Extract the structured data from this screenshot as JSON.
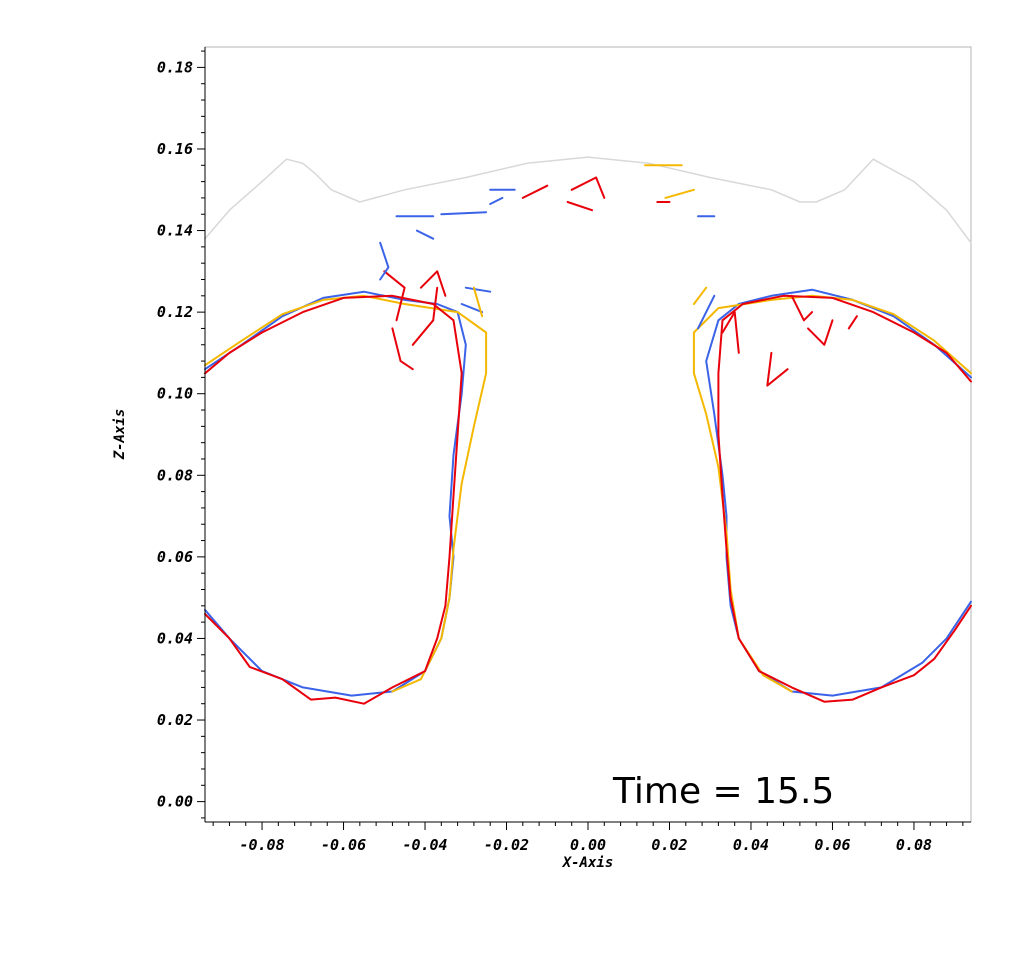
{
  "chart_data": {
    "type": "line",
    "xlabel": "X-Axis",
    "ylabel": "Z-Axis",
    "xlim": [
      -0.094,
      0.094
    ],
    "ylim": [
      -0.005,
      0.185
    ],
    "x_ticks": [
      -0.08,
      -0.06,
      -0.04,
      -0.02,
      0.0,
      0.02,
      0.04,
      0.06,
      0.08
    ],
    "x_tick_labels": [
      "-0.08",
      "-0.06",
      "-0.04",
      "-0.02",
      "0.00",
      "0.02",
      "0.04",
      "0.06",
      "0.08"
    ],
    "y_ticks": [
      0.0,
      0.02,
      0.04,
      0.06,
      0.08,
      0.1,
      0.12,
      0.14,
      0.16,
      0.18
    ],
    "y_tick_labels": [
      "0.00",
      "0.02",
      "0.04",
      "0.06",
      "0.08",
      "0.10",
      "0.12",
      "0.14",
      "0.16",
      "0.18"
    ],
    "annotation": "Time = 15.5",
    "grid": false,
    "colors": {
      "red": "#e8000b",
      "blue": "#3b63e8",
      "yellow": "#f5b800",
      "gray": "#d8d8d8"
    },
    "series": [
      {
        "color": "gray",
        "points": [
          [
            -0.094,
            0.138
          ],
          [
            -0.088,
            0.145
          ],
          [
            -0.08,
            0.152
          ],
          [
            -0.074,
            0.1575
          ],
          [
            -0.07,
            0.1565
          ],
          [
            -0.067,
            0.154
          ],
          [
            -0.063,
            0.15
          ],
          [
            -0.056,
            0.147
          ],
          [
            -0.045,
            0.15
          ],
          [
            -0.03,
            0.153
          ],
          [
            -0.015,
            0.1565
          ],
          [
            0.0,
            0.158
          ],
          [
            0.015,
            0.1565
          ],
          [
            0.03,
            0.153
          ],
          [
            0.045,
            0.15
          ],
          [
            0.052,
            0.147
          ],
          [
            0.056,
            0.147
          ],
          [
            0.063,
            0.15
          ],
          [
            0.07,
            0.1575
          ],
          [
            0.08,
            0.152
          ],
          [
            0.088,
            0.145
          ],
          [
            0.094,
            0.137
          ]
        ]
      },
      {
        "color": "blue",
        "points": [
          [
            -0.094,
            0.106
          ],
          [
            -0.085,
            0.112
          ],
          [
            -0.075,
            0.119
          ],
          [
            -0.065,
            0.1235
          ],
          [
            -0.055,
            0.125
          ],
          [
            -0.045,
            0.123
          ],
          [
            -0.037,
            0.122
          ],
          [
            -0.032,
            0.12
          ],
          [
            -0.03,
            0.112
          ],
          [
            -0.031,
            0.1
          ],
          [
            -0.033,
            0.085
          ],
          [
            -0.034,
            0.07
          ],
          [
            -0.033,
            0.06
          ],
          [
            -0.034,
            0.05
          ],
          [
            -0.036,
            0.04
          ],
          [
            -0.04,
            0.032
          ],
          [
            -0.048,
            0.027
          ],
          [
            -0.058,
            0.026
          ],
          [
            -0.07,
            0.028
          ],
          [
            -0.08,
            0.032
          ],
          [
            -0.088,
            0.04
          ],
          [
            -0.094,
            0.047
          ]
        ]
      },
      {
        "color": "blue",
        "points": [
          [
            0.094,
            0.104
          ],
          [
            0.085,
            0.112
          ],
          [
            0.075,
            0.119
          ],
          [
            0.065,
            0.123
          ],
          [
            0.055,
            0.1255
          ],
          [
            0.045,
            0.124
          ],
          [
            0.037,
            0.122
          ],
          [
            0.032,
            0.118
          ],
          [
            0.029,
            0.108
          ],
          [
            0.031,
            0.095
          ],
          [
            0.033,
            0.08
          ],
          [
            0.034,
            0.07
          ],
          [
            0.034,
            0.06
          ],
          [
            0.035,
            0.048
          ],
          [
            0.037,
            0.04
          ],
          [
            0.042,
            0.032
          ],
          [
            0.05,
            0.027
          ],
          [
            0.06,
            0.026
          ],
          [
            0.072,
            0.028
          ],
          [
            0.082,
            0.034
          ],
          [
            0.088,
            0.04
          ],
          [
            0.094,
            0.049
          ]
        ]
      },
      {
        "color": "yellow",
        "points": [
          [
            -0.094,
            0.107
          ],
          [
            -0.085,
            0.113
          ],
          [
            -0.075,
            0.1195
          ],
          [
            -0.065,
            0.123
          ],
          [
            -0.055,
            0.124
          ],
          [
            -0.045,
            0.122
          ],
          [
            -0.032,
            0.12
          ],
          [
            -0.025,
            0.115
          ],
          [
            -0.025,
            0.105
          ],
          [
            -0.028,
            0.092
          ],
          [
            -0.031,
            0.078
          ],
          [
            -0.033,
            0.062
          ],
          [
            -0.034,
            0.05
          ],
          [
            -0.036,
            0.04
          ],
          [
            -0.041,
            0.03
          ],
          [
            -0.048,
            0.027
          ]
        ]
      },
      {
        "color": "yellow",
        "points": [
          [
            0.094,
            0.105
          ],
          [
            0.085,
            0.113
          ],
          [
            0.075,
            0.1195
          ],
          [
            0.065,
            0.123
          ],
          [
            0.055,
            0.124
          ],
          [
            0.045,
            0.123
          ],
          [
            0.032,
            0.121
          ],
          [
            0.026,
            0.115
          ],
          [
            0.026,
            0.105
          ],
          [
            0.029,
            0.095
          ],
          [
            0.032,
            0.082
          ],
          [
            0.034,
            0.066
          ],
          [
            0.035,
            0.052
          ],
          [
            0.037,
            0.04
          ],
          [
            0.043,
            0.031
          ],
          [
            0.05,
            0.027
          ]
        ]
      },
      {
        "color": "red",
        "points": [
          [
            -0.094,
            0.105
          ],
          [
            -0.088,
            0.11
          ],
          [
            -0.08,
            0.115
          ],
          [
            -0.07,
            0.12
          ],
          [
            -0.06,
            0.1235
          ],
          [
            -0.048,
            0.124
          ],
          [
            -0.038,
            0.122
          ],
          [
            -0.033,
            0.118
          ],
          [
            -0.031,
            0.105
          ],
          [
            -0.032,
            0.09
          ],
          [
            -0.033,
            0.075
          ],
          [
            -0.034,
            0.06
          ],
          [
            -0.035,
            0.048
          ],
          [
            -0.037,
            0.04
          ],
          [
            -0.04,
            0.032
          ],
          [
            -0.048,
            0.028
          ],
          [
            -0.055,
            0.024
          ],
          [
            -0.062,
            0.0255
          ],
          [
            -0.068,
            0.025
          ],
          [
            -0.075,
            0.03
          ],
          [
            -0.083,
            0.033
          ],
          [
            -0.088,
            0.04
          ],
          [
            -0.094,
            0.046
          ]
        ]
      },
      {
        "color": "red",
        "points": [
          [
            0.094,
            0.103
          ],
          [
            0.088,
            0.11
          ],
          [
            0.08,
            0.115
          ],
          [
            0.07,
            0.12
          ],
          [
            0.06,
            0.1235
          ],
          [
            0.048,
            0.124
          ],
          [
            0.038,
            0.122
          ],
          [
            0.033,
            0.118
          ],
          [
            0.032,
            0.105
          ],
          [
            0.032,
            0.09
          ],
          [
            0.033,
            0.075
          ],
          [
            0.034,
            0.062
          ],
          [
            0.035,
            0.05
          ],
          [
            0.037,
            0.04
          ],
          [
            0.042,
            0.032
          ],
          [
            0.05,
            0.028
          ],
          [
            0.058,
            0.0245
          ],
          [
            0.065,
            0.025
          ],
          [
            0.072,
            0.028
          ],
          [
            0.08,
            0.031
          ],
          [
            0.085,
            0.035
          ],
          [
            0.09,
            0.042
          ],
          [
            0.094,
            0.048
          ]
        ]
      },
      {
        "color": "red",
        "points": [
          [
            -0.05,
            0.13
          ],
          [
            -0.045,
            0.126
          ],
          [
            -0.047,
            0.118
          ]
        ]
      },
      {
        "color": "red",
        "points": [
          [
            -0.048,
            0.116
          ],
          [
            -0.046,
            0.108
          ],
          [
            -0.043,
            0.106
          ]
        ]
      },
      {
        "color": "red",
        "points": [
          [
            -0.043,
            0.112
          ],
          [
            -0.038,
            0.118
          ],
          [
            -0.037,
            0.126
          ]
        ]
      },
      {
        "color": "red",
        "points": [
          [
            -0.041,
            0.126
          ],
          [
            -0.037,
            0.13
          ],
          [
            -0.035,
            0.124
          ]
        ]
      },
      {
        "color": "red",
        "points": [
          [
            -0.016,
            0.148
          ],
          [
            -0.01,
            0.151
          ]
        ]
      },
      {
        "color": "red",
        "points": [
          [
            -0.004,
            0.15
          ],
          [
            0.002,
            0.153
          ],
          [
            0.004,
            0.148
          ]
        ]
      },
      {
        "color": "red",
        "points": [
          [
            -0.005,
            0.147
          ],
          [
            0.001,
            0.145
          ]
        ]
      },
      {
        "color": "red",
        "points": [
          [
            0.017,
            0.147
          ],
          [
            0.02,
            0.147
          ]
        ]
      },
      {
        "color": "red",
        "points": [
          [
            0.033,
            0.115
          ],
          [
            0.036,
            0.12
          ],
          [
            0.037,
            0.11
          ]
        ]
      },
      {
        "color": "red",
        "points": [
          [
            0.045,
            0.11
          ],
          [
            0.044,
            0.102
          ],
          [
            0.049,
            0.106
          ]
        ]
      },
      {
        "color": "red",
        "points": [
          [
            0.05,
            0.124
          ],
          [
            0.053,
            0.118
          ],
          [
            0.055,
            0.12
          ]
        ]
      },
      {
        "color": "red",
        "points": [
          [
            0.054,
            0.116
          ],
          [
            0.058,
            0.112
          ],
          [
            0.06,
            0.118
          ]
        ]
      },
      {
        "color": "red",
        "points": [
          [
            0.064,
            0.116
          ],
          [
            0.066,
            0.119
          ]
        ]
      },
      {
        "color": "blue",
        "points": [
          [
            -0.051,
            0.137
          ],
          [
            -0.049,
            0.131
          ],
          [
            -0.051,
            0.128
          ]
        ]
      },
      {
        "color": "blue",
        "points": [
          [
            -0.047,
            0.1435
          ],
          [
            -0.038,
            0.1435
          ]
        ]
      },
      {
        "color": "blue",
        "points": [
          [
            -0.042,
            0.14
          ],
          [
            -0.038,
            0.138
          ]
        ]
      },
      {
        "color": "blue",
        "points": [
          [
            -0.036,
            0.144
          ],
          [
            -0.025,
            0.1445
          ]
        ]
      },
      {
        "color": "blue",
        "points": [
          [
            -0.024,
            0.15
          ],
          [
            -0.018,
            0.15
          ]
        ]
      },
      {
        "color": "blue",
        "points": [
          [
            -0.024,
            0.1465
          ],
          [
            -0.021,
            0.148
          ]
        ]
      },
      {
        "color": "blue",
        "points": [
          [
            -0.03,
            0.126
          ],
          [
            -0.024,
            0.125
          ]
        ]
      },
      {
        "color": "blue",
        "points": [
          [
            -0.031,
            0.122
          ],
          [
            -0.026,
            0.12
          ]
        ]
      },
      {
        "color": "blue",
        "points": [
          [
            0.027,
            0.1435
          ],
          [
            0.031,
            0.1435
          ]
        ]
      },
      {
        "color": "blue",
        "points": [
          [
            0.027,
            0.116
          ],
          [
            0.031,
            0.124
          ]
        ]
      },
      {
        "color": "yellow",
        "points": [
          [
            0.014,
            0.156
          ],
          [
            0.023,
            0.156
          ]
        ]
      },
      {
        "color": "yellow",
        "points": [
          [
            0.019,
            0.148
          ],
          [
            0.026,
            0.15
          ]
        ]
      },
      {
        "color": "yellow",
        "points": [
          [
            -0.026,
            0.119
          ],
          [
            -0.028,
            0.126
          ]
        ]
      },
      {
        "color": "yellow",
        "points": [
          [
            0.026,
            0.122
          ],
          [
            0.029,
            0.126
          ]
        ]
      }
    ]
  }
}
